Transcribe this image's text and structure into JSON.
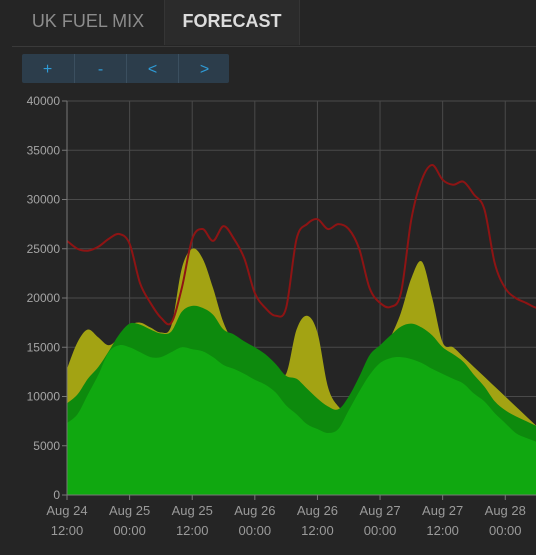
{
  "tabs": [
    {
      "label": "UK FUEL MIX",
      "active": false
    },
    {
      "label": "FORECAST",
      "active": true
    }
  ],
  "controls": {
    "zoom_in": "+",
    "zoom_out": "-",
    "prev": "<",
    "next": ">"
  },
  "colors": {
    "background": "#252525",
    "grid": "#4a4a4a",
    "demand_line": "#8e1414",
    "yellow_area": "#a3a313",
    "dark_green_area": "#0d8a0d",
    "green_area": "#10a810",
    "button_text": "#2f9bd6"
  },
  "chart_data": {
    "type": "area",
    "ylim": [
      0,
      40000
    ],
    "yticks": [
      "0",
      "5000",
      "10000",
      "15000",
      "20000",
      "25000",
      "30000",
      "35000",
      "40000"
    ],
    "xlim": [
      0,
      46
    ],
    "xticks": [
      {
        "x": 0,
        "top": "Aug 24",
        "bottom": "12:00"
      },
      {
        "x": 6,
        "top": "Aug 25",
        "bottom": "00:00"
      },
      {
        "x": 12,
        "top": "Aug 25",
        "bottom": "12:00"
      },
      {
        "x": 18,
        "top": "Aug 26",
        "bottom": "00:00"
      },
      {
        "x": 24,
        "top": "Aug 26",
        "bottom": "12:00"
      },
      {
        "x": 30,
        "top": "Aug 27",
        "bottom": "00:00"
      },
      {
        "x": 36,
        "top": "Aug 27",
        "bottom": "12:00"
      },
      {
        "x": 42,
        "top": "Aug 28",
        "bottom": "00:00"
      }
    ],
    "x": [
      0,
      1,
      2,
      3,
      4,
      5,
      6,
      7,
      8,
      9,
      10,
      11,
      12,
      13,
      14,
      15,
      16,
      17,
      18,
      19,
      20,
      21,
      22,
      23,
      24,
      25,
      26,
      27,
      28,
      29,
      30,
      31,
      32,
      33,
      34,
      35,
      36,
      37,
      38,
      39,
      40,
      41,
      42,
      43,
      44,
      45,
      46
    ],
    "series": [
      {
        "role": "demand_line",
        "values": [
          25800,
          25000,
          24800,
          25200,
          26000,
          26500,
          25500,
          21500,
          19500,
          18000,
          17500,
          21000,
          26000,
          27000,
          25800,
          27300,
          26000,
          24000,
          20500,
          19000,
          18200,
          19000,
          26000,
          27500,
          28000,
          27000,
          27500,
          27000,
          25000,
          21000,
          19500,
          19100,
          20500,
          28000,
          32000,
          33500,
          32000,
          31500,
          31800,
          30500,
          29000,
          23500,
          21000,
          20000,
          19500,
          19000,
          19000
        ]
      },
      {
        "role": "yellow_area",
        "values": [
          12800,
          15500,
          16800,
          16000,
          15200,
          16000,
          17200,
          17500,
          17000,
          16500,
          17200,
          23000,
          25000,
          24000,
          21000,
          17500,
          15500,
          14800,
          14200,
          13500,
          12800,
          12300,
          16800,
          18200,
          16500,
          11000,
          9000,
          8500,
          10500,
          12200,
          14000,
          16000,
          18500,
          22000,
          23700,
          20000,
          15500,
          15000,
          14000,
          13000,
          12000,
          11000,
          10000,
          9000,
          8000,
          7000,
          6000
        ]
      },
      {
        "role": "dark_green_area",
        "values": [
          9300,
          10200,
          11800,
          13000,
          14600,
          16300,
          17400,
          17300,
          16800,
          16400,
          16600,
          18600,
          19200,
          19000,
          18300,
          16800,
          16300,
          15600,
          15000,
          14300,
          13300,
          12100,
          11800,
          10800,
          9800,
          9000,
          8700,
          10000,
          12000,
          14200,
          15200,
          16200,
          17100,
          17400,
          17000,
          16200,
          15000,
          14300,
          13500,
          12200,
          11000,
          9500,
          8600,
          8000,
          7500,
          7000,
          6500
        ]
      },
      {
        "role": "green_area",
        "values": [
          7300,
          8200,
          10200,
          12200,
          14500,
          15200,
          15000,
          14500,
          14000,
          14000,
          14500,
          15000,
          14800,
          14600,
          14000,
          13200,
          12800,
          12300,
          11700,
          11200,
          10400,
          9100,
          8200,
          7200,
          6700,
          6300,
          6700,
          8600,
          10500,
          12200,
          13400,
          13900,
          14000,
          13800,
          13400,
          12800,
          12300,
          11800,
          11300,
          10300,
          9500,
          8300,
          7300,
          6300,
          5800,
          5400,
          5000
        ]
      }
    ]
  }
}
